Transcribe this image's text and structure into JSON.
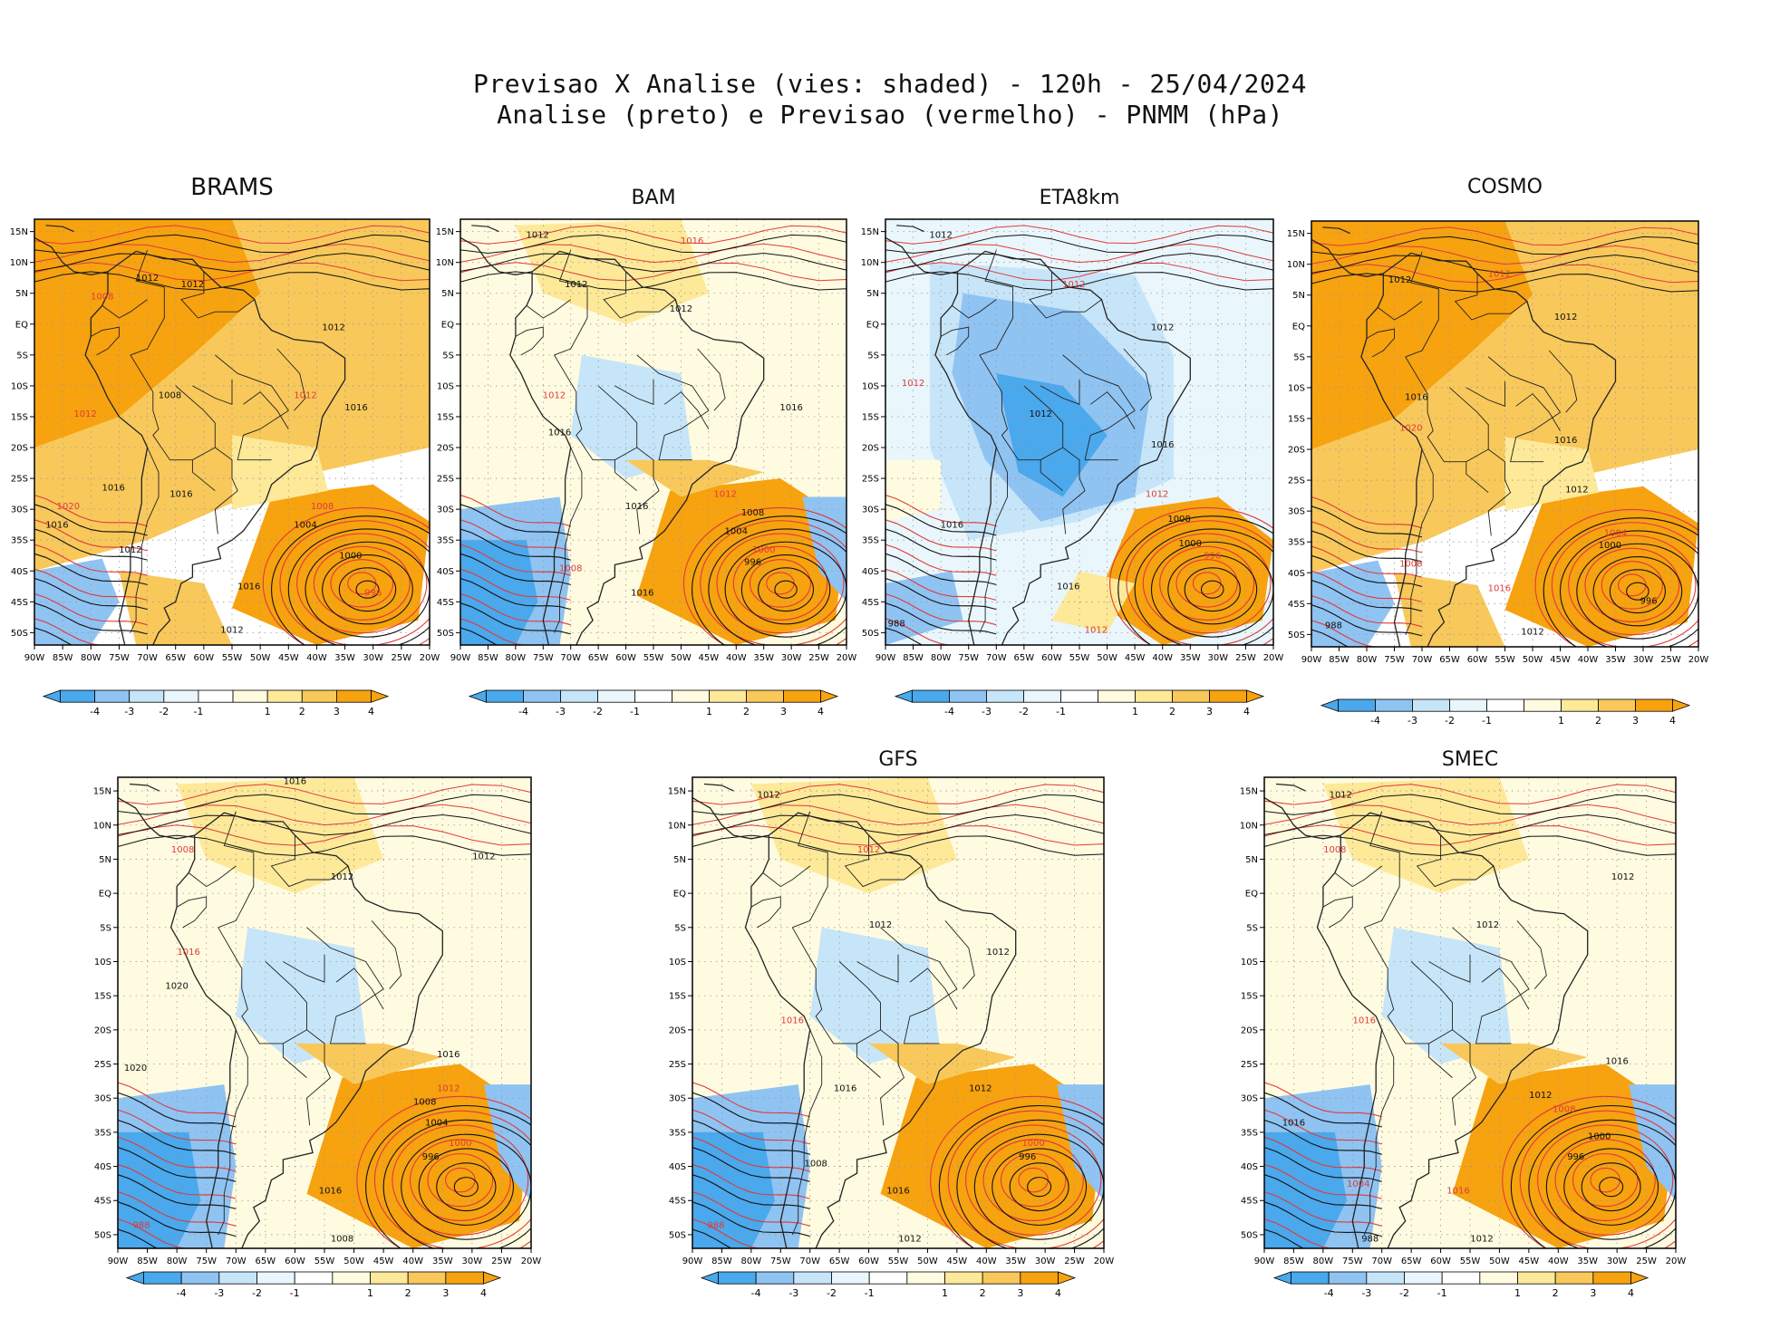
{
  "header": {
    "line1": "Previsao X Analise (vies: shaded) - 120h - 25/04/2024",
    "line2": "Analise (preto) e Previsao (vermelho) - PNMM (hPa)"
  },
  "colors": {
    "neg4": "#4aa8ec",
    "neg3": "#8fc3f2",
    "neg2": "#c7e5f8",
    "neg1": "#e9f6fc",
    "pos1": "#fffbe0",
    "pos2": "#fde998",
    "pos3": "#f8c85a",
    "pos4": "#f7a20f",
    "analysis": "#111111",
    "forecast": "#e03a3a",
    "coast": "#222222"
  },
  "chart_data": {
    "type": "heatmap",
    "description_units": "hPa",
    "colorbar_ticks": [
      "-4",
      "-3",
      "-2",
      "-1",
      "1",
      "2",
      "3",
      "4"
    ],
    "x_ticks": [
      "90W",
      "85W",
      "80W",
      "75W",
      "70W",
      "65W",
      "60W",
      "55W",
      "50W",
      "45W",
      "40W",
      "35W",
      "30W",
      "25W",
      "20W"
    ],
    "y_ticks": [
      "15N",
      "10N",
      "5N",
      "EQ",
      "5S",
      "10S",
      "15S",
      "20S",
      "25S",
      "30S",
      "35S",
      "40S",
      "45S",
      "50S"
    ],
    "xlim": [
      -90,
      -20
    ],
    "ylim": [
      -52,
      17
    ],
    "panels": [
      {
        "name": "BRAMS",
        "bias": "warm",
        "labels": [
          {
            "text": "1012",
            "lon": -70,
            "lat": 7
          },
          {
            "text": "1008",
            "lon": -78,
            "lat": 4
          },
          {
            "text": "1012",
            "lon": -62,
            "lat": 6
          },
          {
            "text": "1012",
            "lon": -37,
            "lat": -1
          },
          {
            "text": "1012",
            "lon": -42,
            "lat": -12
          },
          {
            "text": "1016",
            "lon": -33,
            "lat": -14
          },
          {
            "text": "1008",
            "lon": -66,
            "lat": -12
          },
          {
            "text": "1012",
            "lon": -81,
            "lat": -15
          },
          {
            "text": "1016",
            "lon": -76,
            "lat": -27
          },
          {
            "text": "1016",
            "lon": -64,
            "lat": -28
          },
          {
            "text": "1020",
            "lon": -84,
            "lat": -30
          },
          {
            "text": "1016",
            "lon": -86,
            "lat": -33
          },
          {
            "text": "1012",
            "lon": -73,
            "lat": -37
          },
          {
            "text": "1008",
            "lon": -39,
            "lat": -30
          },
          {
            "text": "1004",
            "lon": -42,
            "lat": -33
          },
          {
            "text": "1000",
            "lon": -34,
            "lat": -38
          },
          {
            "text": "996",
            "lon": -30,
            "lat": -44
          },
          {
            "text": "1016",
            "lon": -52,
            "lat": -43
          },
          {
            "text": "1012",
            "lon": -55,
            "lat": -50
          }
        ]
      },
      {
        "name": "BAM",
        "bias": "mixed",
        "labels": [
          {
            "text": "1012",
            "lon": -76,
            "lat": 14
          },
          {
            "text": "1016",
            "lon": -48,
            "lat": 13
          },
          {
            "text": "1012",
            "lon": -69,
            "lat": 6
          },
          {
            "text": "1012",
            "lon": -50,
            "lat": 2
          },
          {
            "text": "1012",
            "lon": -73,
            "lat": -12
          },
          {
            "text": "1016",
            "lon": -72,
            "lat": -18
          },
          {
            "text": "1016",
            "lon": -58,
            "lat": -30
          },
          {
            "text": "1012",
            "lon": -42,
            "lat": -28
          },
          {
            "text": "1008",
            "lon": -37,
            "lat": -31
          },
          {
            "text": "1004",
            "lon": -40,
            "lat": -34
          },
          {
            "text": "1000",
            "lon": -35,
            "lat": -37
          },
          {
            "text": "996",
            "lon": -37,
            "lat": -39
          },
          {
            "text": "1016",
            "lon": -57,
            "lat": -44
          },
          {
            "text": "1008",
            "lon": -70,
            "lat": -40
          },
          {
            "text": "1016",
            "lon": -30,
            "lat": -14
          }
        ]
      },
      {
        "name": "ETA8km",
        "bias": "cold",
        "labels": [
          {
            "text": "1012",
            "lon": -80,
            "lat": 14
          },
          {
            "text": "1012",
            "lon": -56,
            "lat": 6
          },
          {
            "text": "1012",
            "lon": -40,
            "lat": -1
          },
          {
            "text": "1012",
            "lon": -62,
            "lat": -15
          },
          {
            "text": "1012",
            "lon": -85,
            "lat": -10
          },
          {
            "text": "1016",
            "lon": -40,
            "lat": -20
          },
          {
            "text": "1016",
            "lon": -78,
            "lat": -33
          },
          {
            "text": "1012",
            "lon": -41,
            "lat": -28
          },
          {
            "text": "1008",
            "lon": -37,
            "lat": -32
          },
          {
            "text": "1000",
            "lon": -35,
            "lat": -36
          },
          {
            "text": "996",
            "lon": -31,
            "lat": -38
          },
          {
            "text": "1016",
            "lon": -57,
            "lat": -43
          },
          {
            "text": "988",
            "lon": -88,
            "lat": -49
          },
          {
            "text": "1012",
            "lon": -52,
            "lat": -50
          }
        ]
      },
      {
        "name": "COSMO",
        "bias": "warm",
        "labels": [
          {
            "text": "1012",
            "lon": -74,
            "lat": 7
          },
          {
            "text": "1012",
            "lon": -56,
            "lat": 8
          },
          {
            "text": "1012",
            "lon": -44,
            "lat": 1
          },
          {
            "text": "1016",
            "lon": -71,
            "lat": -12
          },
          {
            "text": "1020",
            "lon": -72,
            "lat": -17
          },
          {
            "text": "1016",
            "lon": -44,
            "lat": -19
          },
          {
            "text": "1012",
            "lon": -42,
            "lat": -27
          },
          {
            "text": "1004",
            "lon": -35,
            "lat": -34
          },
          {
            "text": "1000",
            "lon": -36,
            "lat": -36
          },
          {
            "text": "996",
            "lon": -29,
            "lat": -45
          },
          {
            "text": "1016",
            "lon": -56,
            "lat": -43
          },
          {
            "text": "1012",
            "lon": -50,
            "lat": -50
          },
          {
            "text": "988",
            "lon": -86,
            "lat": -49
          },
          {
            "text": "1008",
            "lon": -72,
            "lat": -39
          }
        ]
      },
      {
        "name": "",
        "bias": "mixed",
        "labels": [
          {
            "text": "1016",
            "lon": -60,
            "lat": 16
          },
          {
            "text": "1008",
            "lon": -79,
            "lat": 6
          },
          {
            "text": "1012",
            "lon": -52,
            "lat": 2
          },
          {
            "text": "1012",
            "lon": -28,
            "lat": 5
          },
          {
            "text": "1016",
            "lon": -78,
            "lat": -9
          },
          {
            "text": "1020",
            "lon": -80,
            "lat": -14
          },
          {
            "text": "1016",
            "lon": -34,
            "lat": -24
          },
          {
            "text": "1012",
            "lon": -34,
            "lat": -29
          },
          {
            "text": "1008",
            "lon": -38,
            "lat": -31
          },
          {
            "text": "1004",
            "lon": -36,
            "lat": -34
          },
          {
            "text": "1000",
            "lon": -32,
            "lat": -37
          },
          {
            "text": "996",
            "lon": -37,
            "lat": -39
          },
          {
            "text": "1016",
            "lon": -54,
            "lat": -44
          },
          {
            "text": "988",
            "lon": -86,
            "lat": -49
          },
          {
            "text": "1008",
            "lon": -52,
            "lat": -51
          },
          {
            "text": "1020",
            "lon": -87,
            "lat": -26
          }
        ]
      },
      {
        "name": "GFS",
        "bias": "mixed",
        "labels": [
          {
            "text": "1012",
            "lon": -77,
            "lat": 14
          },
          {
            "text": "1012",
            "lon": -60,
            "lat": 6
          },
          {
            "text": "1012",
            "lon": -58,
            "lat": -5
          },
          {
            "text": "1012",
            "lon": -38,
            "lat": -9
          },
          {
            "text": "1016",
            "lon": -73,
            "lat": -19
          },
          {
            "text": "1016",
            "lon": -64,
            "lat": -29
          },
          {
            "text": "1012",
            "lon": -41,
            "lat": -29
          },
          {
            "text": "1000",
            "lon": -32,
            "lat": -37
          },
          {
            "text": "996",
            "lon": -33,
            "lat": -39
          },
          {
            "text": "1016",
            "lon": -55,
            "lat": -44
          },
          {
            "text": "988",
            "lon": -86,
            "lat": -49
          },
          {
            "text": "1012",
            "lon": -53,
            "lat": -51
          },
          {
            "text": "1008",
            "lon": -69,
            "lat": -40
          }
        ]
      },
      {
        "name": "SMEC",
        "bias": "mixed",
        "labels": [
          {
            "text": "1012",
            "lon": -77,
            "lat": 14
          },
          {
            "text": "1008",
            "lon": -78,
            "lat": 6
          },
          {
            "text": "1012",
            "lon": -52,
            "lat": -5
          },
          {
            "text": "1012",
            "lon": -29,
            "lat": 2
          },
          {
            "text": "1016",
            "lon": -73,
            "lat": -19
          },
          {
            "text": "1016",
            "lon": -30,
            "lat": -25
          },
          {
            "text": "1012",
            "lon": -43,
            "lat": -30
          },
          {
            "text": "1008",
            "lon": -39,
            "lat": -32
          },
          {
            "text": "1000",
            "lon": -33,
            "lat": -36
          },
          {
            "text": "996",
            "lon": -37,
            "lat": -39
          },
          {
            "text": "1016",
            "lon": -57,
            "lat": -44
          },
          {
            "text": "1012",
            "lon": -53,
            "lat": -51
          },
          {
            "text": "1016",
            "lon": -85,
            "lat": -34
          },
          {
            "text": "1004",
            "lon": -74,
            "lat": -43
          },
          {
            "text": "988",
            "lon": -72,
            "lat": -51
          }
        ]
      }
    ]
  }
}
